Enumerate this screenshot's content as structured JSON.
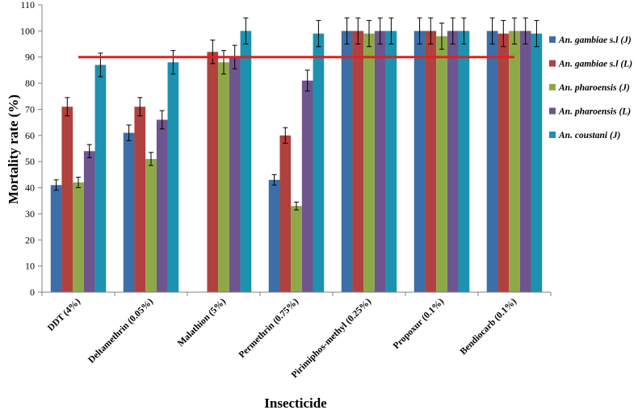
{
  "chart_data": {
    "type": "bar",
    "title": "",
    "xlabel": "Insecticide",
    "ylabel": "Mortality rate (%)",
    "ylim": [
      0,
      110
    ],
    "ytick_step": 10,
    "grid": false,
    "legend_position": "right",
    "categories": [
      "DDT (4%)",
      "Deltamethrin (0.05%)",
      "Malathion (5%)",
      "Permethrin (0.75%)",
      "Pirimiphos-methyl (0.25%)",
      "Propoxur (0.1%)",
      "Bendiocarb (0.1%)"
    ],
    "series": [
      {
        "name": "An. gambiae s.l (J)",
        "color": "#3c6ea8",
        "values": [
          41,
          61,
          null,
          43,
          100,
          100,
          100
        ],
        "errors": [
          2,
          3,
          null,
          2,
          5,
          5,
          5
        ]
      },
      {
        "name": "An. gambiae s.l (L)",
        "color": "#b0413e",
        "values": [
          71,
          71,
          92,
          60,
          100,
          100,
          99
        ],
        "errors": [
          3.5,
          3.5,
          4.5,
          3,
          5,
          5,
          5
        ]
      },
      {
        "name": "An. pharoensis (J)",
        "color": "#8ea848",
        "values": [
          42,
          51,
          88,
          33,
          99,
          98,
          100
        ],
        "errors": [
          2,
          2.5,
          4.5,
          1.5,
          5,
          5,
          5
        ]
      },
      {
        "name": "An. pharoensis (L)",
        "color": "#6e558e",
        "values": [
          54,
          66,
          90,
          81,
          100,
          100,
          100
        ],
        "errors": [
          2.5,
          3.5,
          4.5,
          4,
          5,
          5,
          5
        ]
      },
      {
        "name": "An. coustani (J)",
        "color": "#1c92b0",
        "values": [
          87,
          88,
          100,
          99,
          100,
          100,
          99
        ],
        "errors": [
          4.5,
          4.5,
          5,
          5,
          5,
          5,
          5
        ]
      }
    ],
    "reference_line": {
      "value": 90,
      "color": "#e02020"
    }
  }
}
